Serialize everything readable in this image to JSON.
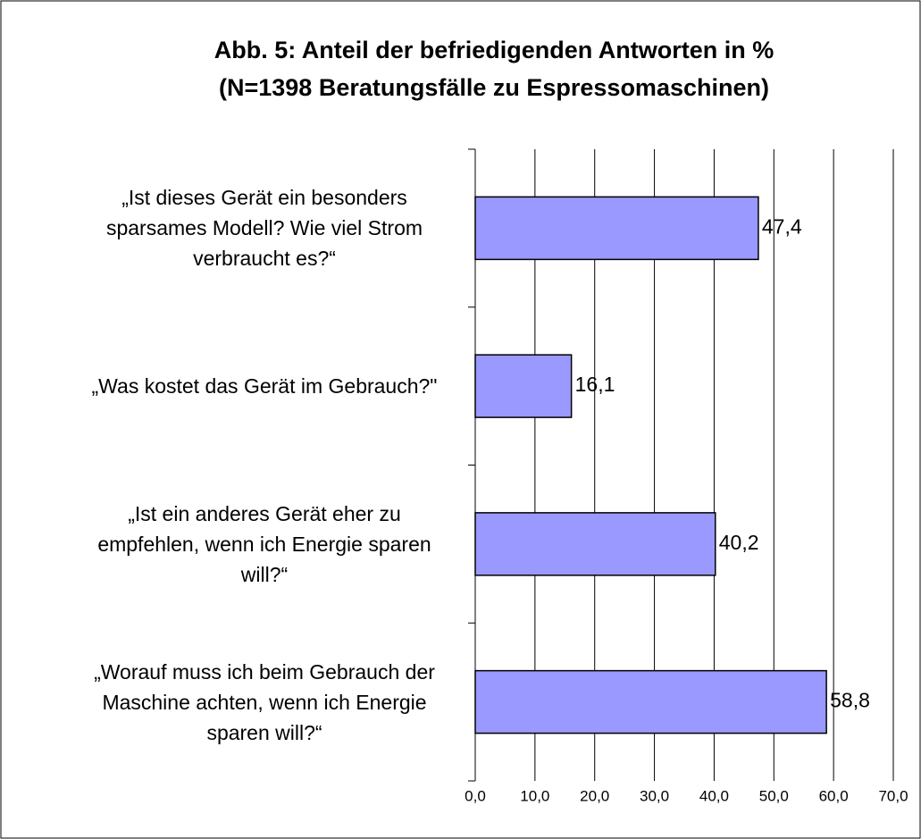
{
  "chart_data": {
    "type": "bar",
    "orientation": "horizontal",
    "title": "Abb. 5: Anteil der befriedigenden Antworten in %",
    "subtitle": "(N=1398 Beratungsfälle zu Espressomaschinen)",
    "categories": [
      "„Ist dieses Gerät ein besonders\nsparsames Modell? Wie viel Strom\nverbraucht es?“",
      "„Was kostet das Gerät im Gebrauch?\"",
      "„Ist ein anderes Gerät eher zu\nempfehlen, wenn ich Energie sparen\nwill?“",
      "„Worauf muss ich beim Gebrauch der\nMaschine achten, wenn ich Energie\nsparen will?“"
    ],
    "values": [
      47.4,
      16.1,
      40.2,
      58.8
    ],
    "value_labels": [
      "47,4",
      "16,1",
      "40,2",
      "58,8"
    ],
    "color": "#9999ff",
    "xlim": [
      0,
      70
    ],
    "xticks": [
      {
        "value": 0,
        "label": "0,0"
      },
      {
        "value": 10,
        "label": "10,0"
      },
      {
        "value": 20,
        "label": "20,0"
      },
      {
        "value": 30,
        "label": "30,0"
      },
      {
        "value": 40,
        "label": "40,0"
      },
      {
        "value": 50,
        "label": "50,0"
      },
      {
        "value": 60,
        "label": "60,0"
      },
      {
        "value": 70,
        "label": "70,0"
      }
    ],
    "grid": true
  }
}
